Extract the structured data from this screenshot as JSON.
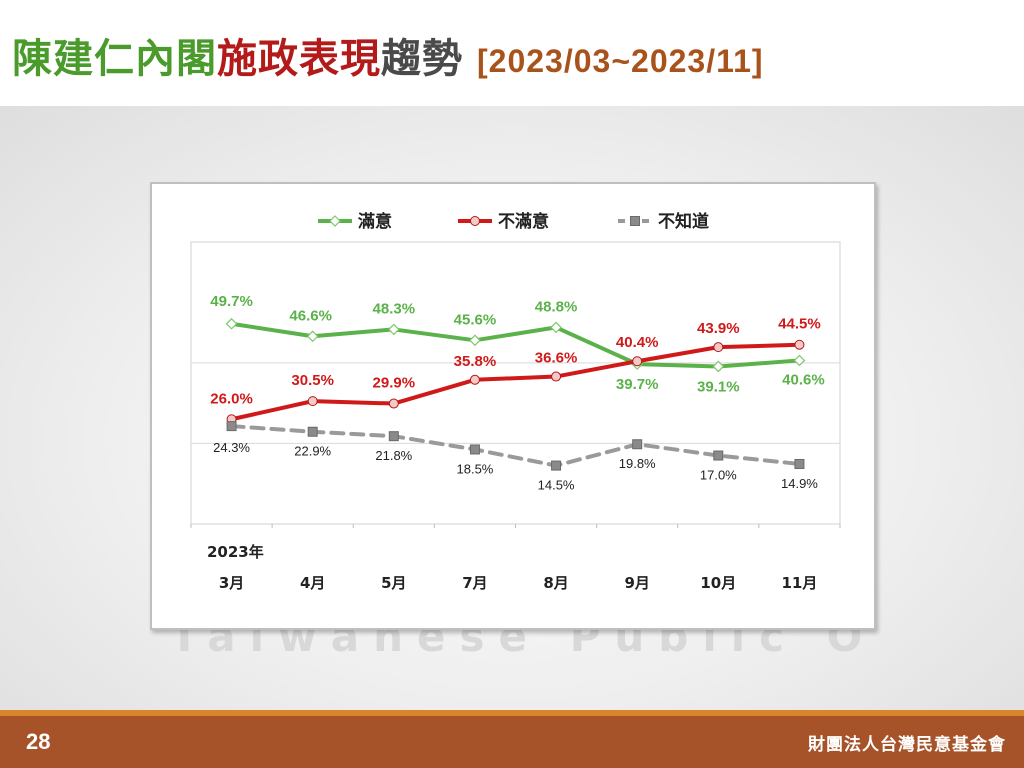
{
  "slide": {
    "title_part1": "陳建仁內閣",
    "title_part2": "施政表現",
    "title_part3": "趨勢",
    "date_range": "[2023/03~2023/11]",
    "page_number": "28",
    "organization": "財團法人台灣民意基金會"
  },
  "colors": {
    "title_green": "#4a9a2c",
    "title_red": "#b31a1a",
    "title_brown": "#a8531c",
    "footer": "#a6532a",
    "footer_accent": "#d9862a"
  },
  "chart_data": {
    "type": "line",
    "year_label": "2023年",
    "categories": [
      "3月",
      "4月",
      "5月",
      "7月",
      "8月",
      "9月",
      "10月",
      "11月"
    ],
    "legend_position": "top",
    "grid": true,
    "series": [
      {
        "name": "滿意",
        "color": "#5bb24a",
        "marker": "diamond",
        "dashed": false,
        "values": [
          49.7,
          46.6,
          48.3,
          45.6,
          48.8,
          39.7,
          39.1,
          40.6
        ],
        "labels": [
          "49.7%",
          "46.6%",
          "48.3%",
          "45.6%",
          "48.8%",
          "39.7%",
          "39.1%",
          "40.6%"
        ]
      },
      {
        "name": "不滿意",
        "color": "#d01a1a",
        "marker": "circle",
        "dashed": false,
        "values": [
          26.0,
          30.5,
          29.9,
          35.8,
          36.6,
          40.4,
          43.9,
          44.5
        ],
        "labels": [
          "26.0%",
          "30.5%",
          "29.9%",
          "35.8%",
          "36.6%",
          "40.4%",
          "43.9%",
          "44.5%"
        ]
      },
      {
        "name": "不知道",
        "color": "#9a9a9a",
        "marker": "square",
        "dashed": true,
        "values": [
          24.3,
          22.9,
          21.8,
          18.5,
          14.5,
          19.8,
          17.0,
          14.9
        ],
        "labels": [
          "24.3%",
          "22.9%",
          "21.8%",
          "18.5%",
          "14.5%",
          "19.8%",
          "17.0%",
          "14.9%"
        ]
      }
    ]
  },
  "watermark_text": "Taiwanese Public Opinion"
}
